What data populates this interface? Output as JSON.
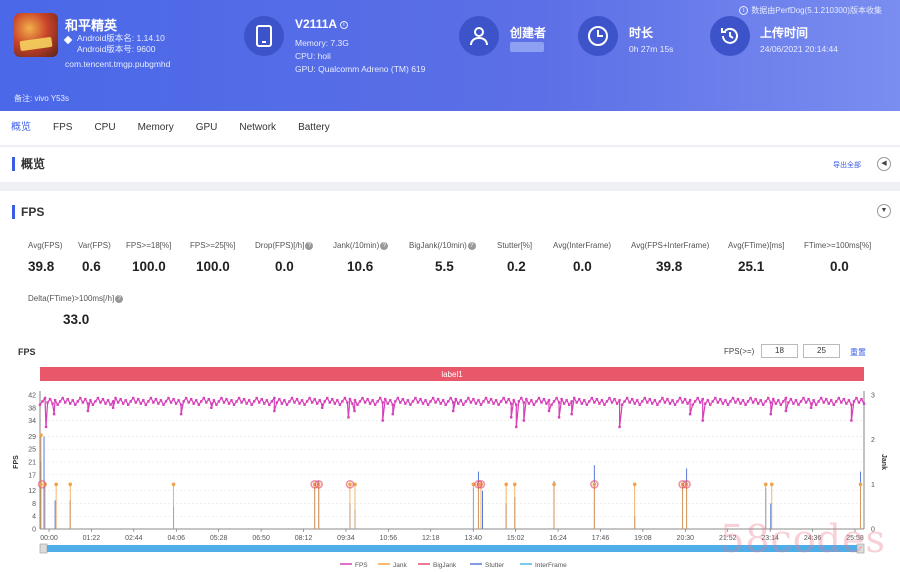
{
  "notice": "数据由PerfDog(5.1.210300)版本收集",
  "app": {
    "name": "和平精英",
    "version_line": "Android版本名: 1.14.10",
    "build_line": "Android版本号: 9600",
    "package": "com.tencent.tmgp.pubgmhd",
    "remark": "备注: vivo Y53s"
  },
  "device": {
    "model": "V2111A",
    "memory": "Memory: 7.3G",
    "cpu": "CPU: holi",
    "gpu": "GPU: Qualcomm Adreno (TM) 619"
  },
  "creator": {
    "title": "创建者"
  },
  "duration": {
    "title": "时长",
    "value": "0h 27m 15s"
  },
  "upload": {
    "title": "上传时间",
    "value": "24/06/2021 20:14:44"
  },
  "tabs": [
    "概览",
    "FPS",
    "CPU",
    "Memory",
    "GPU",
    "Network",
    "Battery"
  ],
  "overview": {
    "title": "概览",
    "export": "导出全部"
  },
  "fps_section": {
    "title": "FPS",
    "metrics": [
      {
        "label": "Avg(FPS)",
        "value": "39.8"
      },
      {
        "label": "Var(FPS)",
        "value": "0.6"
      },
      {
        "label": "FPS>=18[%]",
        "value": "100.0"
      },
      {
        "label": "FPS>=25[%]",
        "value": "100.0"
      },
      {
        "label": "Drop(FPS)[/h]",
        "value": "0.0"
      },
      {
        "label": "Jank(/10min)",
        "value": "10.6"
      },
      {
        "label": "BigJank(/10min)",
        "value": "5.5"
      },
      {
        "label": "Stutter[%]",
        "value": "0.2"
      },
      {
        "label": "Avg(InterFrame)",
        "value": "0.0"
      },
      {
        "label": "Avg(FPS+InterFrame)",
        "value": "39.8"
      },
      {
        "label": "Avg(FTime)[ms]",
        "value": "25.1"
      },
      {
        "label": "FTime>=100ms[%]",
        "value": "0.0"
      },
      {
        "label": "Delta(FTime)>100ms[/h]",
        "value": "33.0"
      }
    ]
  },
  "chart_controls": {
    "title": "FPS",
    "fps_ge_label": "FPS(>=)",
    "threshold1": "18",
    "threshold2": "25",
    "reset": "重置",
    "band_label": "label1"
  },
  "chart_data": {
    "type": "line",
    "title": "FPS",
    "ylabel_left": "FPS",
    "ylabel_right": "Jank",
    "ylim_left": [
      0,
      42
    ],
    "ylim_right": [
      0,
      3
    ],
    "y_ticks_left": [
      "0",
      "4",
      "8",
      "12",
      "17",
      "21",
      "25",
      "29",
      "34",
      "38",
      "42"
    ],
    "y_ticks_right": [
      "0",
      "1",
      "2",
      "3"
    ],
    "x_ticks": [
      "00:00",
      "01:22",
      "02:44",
      "04:06",
      "05:28",
      "06:50",
      "08:12",
      "09:34",
      "10:56",
      "12:18",
      "13:40",
      "15:02",
      "16:24",
      "17:46",
      "19:08",
      "20:30",
      "21:52",
      "23:14",
      "24:36",
      "25:58"
    ],
    "duration_sec": 1635,
    "fps_baseline": 40,
    "fps_dips": [
      {
        "t": 12,
        "v": 32
      },
      {
        "t": 28,
        "v": 36
      },
      {
        "t": 95,
        "v": 37
      },
      {
        "t": 145,
        "v": 38
      },
      {
        "t": 280,
        "v": 36
      },
      {
        "t": 340,
        "v": 38
      },
      {
        "t": 465,
        "v": 37
      },
      {
        "t": 560,
        "v": 38
      },
      {
        "t": 612,
        "v": 35
      },
      {
        "t": 624,
        "v": 37
      },
      {
        "t": 680,
        "v": 34
      },
      {
        "t": 700,
        "v": 36
      },
      {
        "t": 820,
        "v": 37
      },
      {
        "t": 935,
        "v": 35
      },
      {
        "t": 945,
        "v": 32
      },
      {
        "t": 960,
        "v": 34
      },
      {
        "t": 1010,
        "v": 37
      },
      {
        "t": 1030,
        "v": 35
      },
      {
        "t": 1055,
        "v": 36
      },
      {
        "t": 1150,
        "v": 32
      },
      {
        "t": 1290,
        "v": 36
      },
      {
        "t": 1315,
        "v": 34
      },
      {
        "t": 1450,
        "v": 36
      },
      {
        "t": 1480,
        "v": 37
      },
      {
        "t": 1530,
        "v": 38
      },
      {
        "t": 1610,
        "v": 34
      }
    ],
    "jank_events": [
      2,
      10,
      32,
      60,
      265,
      545,
      553,
      615,
      625,
      860,
      870,
      875,
      925,
      942,
      1020,
      1100,
      1180,
      1275,
      1283,
      1440,
      1452,
      1628
    ],
    "bigjank_events": [
      4,
      545,
      553,
      615,
      870,
      875,
      1100,
      1275,
      1283
    ],
    "ftime_spikes": [
      {
        "t": 2,
        "v": 21
      },
      {
        "t": 8,
        "v": 29
      },
      {
        "t": 30,
        "v": 9
      },
      {
        "t": 60,
        "v": 9
      },
      {
        "t": 265,
        "v": 7
      },
      {
        "t": 545,
        "v": 13
      },
      {
        "t": 553,
        "v": 15
      },
      {
        "t": 615,
        "v": 8
      },
      {
        "t": 625,
        "v": 6
      },
      {
        "t": 860,
        "v": 13
      },
      {
        "t": 870,
        "v": 18
      },
      {
        "t": 878,
        "v": 12
      },
      {
        "t": 925,
        "v": 8
      },
      {
        "t": 942,
        "v": 10
      },
      {
        "t": 1020,
        "v": 15
      },
      {
        "t": 1100,
        "v": 20
      },
      {
        "t": 1180,
        "v": 4
      },
      {
        "t": 1275,
        "v": 14
      },
      {
        "t": 1283,
        "v": 19
      },
      {
        "t": 1440,
        "v": 13
      },
      {
        "t": 1450,
        "v": 8
      },
      {
        "t": 1628,
        "v": 18
      }
    ],
    "legend": [
      "FPS",
      "Jank",
      "BigJank",
      "Stutter",
      "InterFrame"
    ],
    "colors": {
      "fps": "#d63fb8",
      "jank": "#f0a24b",
      "bigjank": "#e34b6a",
      "stutter": "#5a7bd8",
      "interframe": "#4fb8e6",
      "band": "#e8576a"
    }
  },
  "watermark": "58codes"
}
